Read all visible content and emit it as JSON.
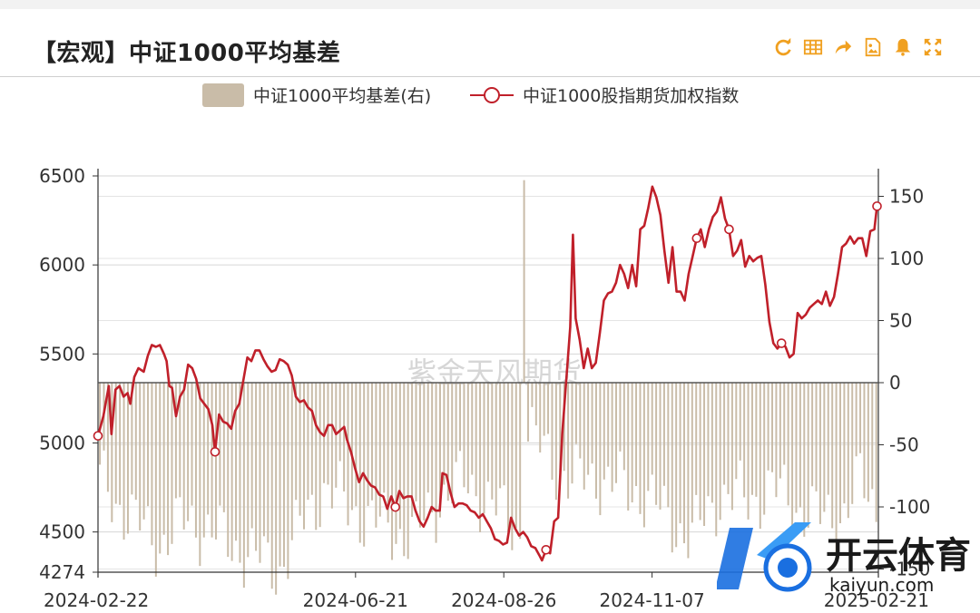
{
  "header": {
    "title": "【宏观】中证1000平均基差",
    "tools": [
      "refresh-icon",
      "table-icon",
      "share-icon",
      "save-image-icon",
      "alert-bell-icon",
      "fullscreen-icon"
    ]
  },
  "colors": {
    "accent": "#f0a020",
    "line": "#c0202a",
    "bar": "#c9bca8",
    "grid": "#d6d6d6",
    "axis": "#333333"
  },
  "watermark": "紫金天风期货",
  "logo": {
    "main": "开云体育",
    "sub": "kaiyun.com"
  },
  "chart_data": {
    "type": "bar+line",
    "x_tick_labels": [
      "2024-02-22",
      "2024-06-21",
      "2024-08-26",
      "2024-11-07",
      "2025-02-21"
    ],
    "legend": {
      "position": "top-center",
      "entries": [
        {
          "name": "中证1000平均基差(右)",
          "type": "bar",
          "color": "#c9bca8"
        },
        {
          "name": "中证1000股指期货加权指数",
          "type": "line",
          "color": "#c0202a"
        }
      ]
    },
    "y_left": {
      "min": 4274,
      "max": 6500,
      "ticks": [
        4274,
        4500,
        5000,
        5500,
        6000,
        6500
      ]
    },
    "y_right": {
      "min": -150,
      "max": 160,
      "ticks": [
        -150,
        -100,
        -50,
        0,
        50,
        100,
        150
      ]
    },
    "grid": true,
    "index_series": {
      "name": "中证1000股指期货加权指数",
      "points": [
        [
          0,
          5040
        ],
        [
          4,
          5150
        ],
        [
          8,
          5320
        ],
        [
          10,
          5050
        ],
        [
          13,
          5300
        ],
        [
          16,
          5320
        ],
        [
          19,
          5260
        ],
        [
          22,
          5280
        ],
        [
          24,
          5220
        ],
        [
          27,
          5370
        ],
        [
          30,
          5420
        ],
        [
          34,
          5400
        ],
        [
          37,
          5490
        ],
        [
          40,
          5550
        ],
        [
          43,
          5540
        ],
        [
          46,
          5550
        ],
        [
          49,
          5500
        ],
        [
          51,
          5460
        ],
        [
          53,
          5320
        ],
        [
          55,
          5310
        ],
        [
          58,
          5150
        ],
        [
          61,
          5260
        ],
        [
          64,
          5300
        ],
        [
          67,
          5440
        ],
        [
          70,
          5420
        ],
        [
          73,
          5360
        ],
        [
          76,
          5250
        ],
        [
          79,
          5220
        ],
        [
          82,
          5190
        ],
        [
          85,
          5100
        ],
        [
          87,
          4950
        ],
        [
          90,
          5160
        ],
        [
          93,
          5120
        ],
        [
          96,
          5110
        ],
        [
          99,
          5080
        ],
        [
          102,
          5180
        ],
        [
          105,
          5220
        ],
        [
          108,
          5350
        ],
        [
          111,
          5480
        ],
        [
          114,
          5460
        ],
        [
          117,
          5520
        ],
        [
          120,
          5520
        ],
        [
          123,
          5470
        ],
        [
          126,
          5430
        ],
        [
          129,
          5400
        ],
        [
          132,
          5410
        ],
        [
          135,
          5470
        ],
        [
          138,
          5460
        ],
        [
          141,
          5440
        ],
        [
          144,
          5380
        ],
        [
          147,
          5260
        ],
        [
          150,
          5230
        ],
        [
          153,
          5240
        ],
        [
          156,
          5200
        ],
        [
          159,
          5180
        ],
        [
          162,
          5100
        ],
        [
          165,
          5060
        ],
        [
          168,
          5040
        ],
        [
          171,
          5100
        ],
        [
          174,
          5100
        ],
        [
          177,
          5050
        ],
        [
          180,
          5070
        ],
        [
          183,
          5090
        ],
        [
          185,
          5020
        ],
        [
          188,
          4950
        ],
        [
          191,
          4860
        ],
        [
          194,
          4780
        ],
        [
          197,
          4830
        ],
        [
          200,
          4790
        ],
        [
          203,
          4760
        ],
        [
          206,
          4750
        ],
        [
          209,
          4710
        ],
        [
          212,
          4700
        ],
        [
          215,
          4630
        ],
        [
          218,
          4700
        ],
        [
          221,
          4640
        ],
        [
          224,
          4730
        ],
        [
          227,
          4690
        ],
        [
          230,
          4700
        ],
        [
          233,
          4700
        ],
        [
          236,
          4620
        ],
        [
          239,
          4560
        ],
        [
          242,
          4530
        ],
        [
          245,
          4580
        ],
        [
          248,
          4640
        ],
        [
          251,
          4620
        ],
        [
          254,
          4620
        ],
        [
          256,
          4830
        ],
        [
          259,
          4820
        ],
        [
          262,
          4720
        ],
        [
          265,
          4640
        ],
        [
          268,
          4660
        ],
        [
          271,
          4660
        ],
        [
          274,
          4650
        ],
        [
          277,
          4620
        ],
        [
          280,
          4610
        ],
        [
          283,
          4580
        ],
        [
          286,
          4600
        ],
        [
          289,
          4560
        ],
        [
          292,
          4520
        ],
        [
          295,
          4460
        ],
        [
          298,
          4450
        ],
        [
          301,
          4430
        ],
        [
          304,
          4440
        ],
        [
          307,
          4580
        ],
        [
          310,
          4520
        ],
        [
          313,
          4480
        ],
        [
          316,
          4500
        ],
        [
          319,
          4470
        ],
        [
          322,
          4420
        ],
        [
          325,
          4410
        ],
        [
          328,
          4370
        ],
        [
          330,
          4340
        ],
        [
          333,
          4400
        ],
        [
          336,
          4380
        ],
        [
          339,
          4560
        ],
        [
          342,
          4580
        ],
        [
          345,
          5050
        ],
        [
          348,
          5350
        ],
        [
          351,
          5650
        ],
        [
          353,
          6170
        ],
        [
          355,
          5700
        ],
        [
          358,
          5580
        ],
        [
          361,
          5420
        ],
        [
          364,
          5530
        ],
        [
          367,
          5420
        ],
        [
          370,
          5450
        ],
        [
          373,
          5620
        ],
        [
          376,
          5800
        ],
        [
          379,
          5840
        ],
        [
          382,
          5850
        ],
        [
          385,
          5900
        ],
        [
          388,
          6000
        ],
        [
          391,
          5950
        ],
        [
          394,
          5870
        ],
        [
          397,
          6000
        ],
        [
          400,
          5880
        ],
        [
          403,
          6200
        ],
        [
          406,
          6220
        ],
        [
          409,
          6320
        ],
        [
          412,
          6440
        ],
        [
          415,
          6380
        ],
        [
          418,
          6280
        ],
        [
          421,
          6080
        ],
        [
          424,
          5900
        ],
        [
          427,
          6100
        ],
        [
          430,
          5850
        ],
        [
          433,
          5850
        ],
        [
          436,
          5800
        ],
        [
          439,
          5950
        ],
        [
          442,
          6050
        ],
        [
          445,
          6150
        ],
        [
          448,
          6200
        ],
        [
          451,
          6100
        ],
        [
          454,
          6200
        ],
        [
          457,
          6270
        ],
        [
          460,
          6300
        ],
        [
          463,
          6380
        ],
        [
          466,
          6260
        ],
        [
          469,
          6200
        ],
        [
          472,
          6050
        ],
        [
          475,
          6080
        ],
        [
          478,
          6140
        ],
        [
          481,
          5990
        ],
        [
          484,
          6050
        ],
        [
          487,
          6020
        ],
        [
          490,
          6040
        ],
        [
          493,
          6050
        ],
        [
          496,
          5890
        ],
        [
          499,
          5680
        ],
        [
          502,
          5560
        ],
        [
          505,
          5530
        ],
        [
          508,
          5560
        ],
        [
          511,
          5540
        ],
        [
          514,
          5480
        ],
        [
          517,
          5500
        ],
        [
          520,
          5730
        ],
        [
          523,
          5700
        ],
        [
          526,
          5720
        ],
        [
          529,
          5760
        ],
        [
          532,
          5780
        ],
        [
          535,
          5800
        ],
        [
          538,
          5780
        ],
        [
          541,
          5850
        ],
        [
          544,
          5770
        ],
        [
          547,
          5820
        ],
        [
          550,
          5950
        ],
        [
          553,
          6100
        ],
        [
          556,
          6120
        ],
        [
          559,
          6160
        ],
        [
          562,
          6120
        ],
        [
          565,
          6150
        ],
        [
          568,
          6150
        ],
        [
          571,
          6050
        ],
        [
          574,
          6190
        ],
        [
          577,
          6200
        ],
        [
          579,
          6330
        ]
      ],
      "x_max": 580
    },
    "basis_series": {
      "name": "中证1000平均基差(右)",
      "count": 195,
      "spike_index": 106,
      "spike_value": 163,
      "base_profile": [
        [
          0,
          -80
        ],
        [
          8,
          -110
        ],
        [
          15,
          -130
        ],
        [
          22,
          -110
        ],
        [
          30,
          -125
        ],
        [
          38,
          -140
        ],
        [
          45,
          -150
        ],
        [
          52,
          -105
        ],
        [
          56,
          -85
        ],
        [
          62,
          -100
        ],
        [
          70,
          -115
        ],
        [
          78,
          -125
        ],
        [
          86,
          -90
        ],
        [
          92,
          -80
        ],
        [
          100,
          -105
        ],
        [
          106,
          -125
        ],
        [
          107,
          -40
        ],
        [
          112,
          -60
        ],
        [
          118,
          -80
        ],
        [
          124,
          -75
        ],
        [
          130,
          -85
        ],
        [
          136,
          -90
        ],
        [
          142,
          -110
        ],
        [
          148,
          -125
        ],
        [
          155,
          -90
        ],
        [
          162,
          -95
        ],
        [
          168,
          -85
        ],
        [
          174,
          -100
        ],
        [
          180,
          -110
        ],
        [
          186,
          -105
        ],
        [
          190,
          -80
        ],
        [
          194,
          -100
        ]
      ]
    }
  }
}
